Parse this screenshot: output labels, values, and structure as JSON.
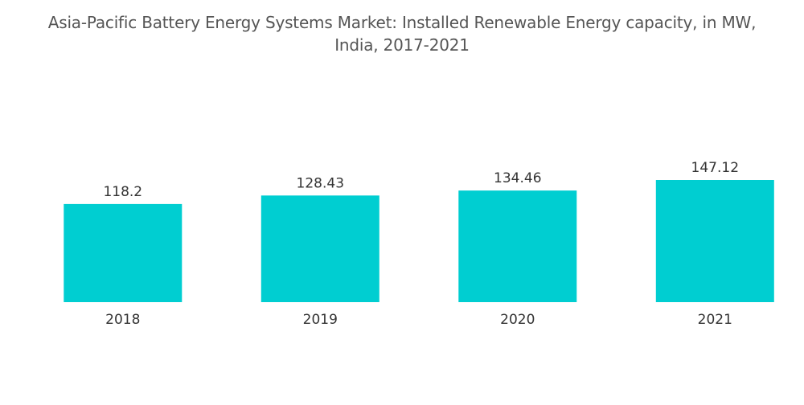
{
  "chart_data": {
    "type": "bar",
    "title_lines": [
      "Asia-Pacific Battery Energy Systems Market: Installed Renewable Energy capacity, in MW,",
      "India, 2017-2021"
    ],
    "categories": [
      "2018",
      "2019",
      "2020",
      "2021"
    ],
    "values": [
      118.2,
      128.43,
      134.46,
      147.12
    ],
    "value_labels": [
      "118.2",
      "128.43",
      "134.46",
      "147.12"
    ],
    "xlabel": "",
    "ylabel": "",
    "ylim": [
      0,
      147.12
    ],
    "grid": false,
    "legend": "none",
    "bar_color": "#00CED1"
  }
}
